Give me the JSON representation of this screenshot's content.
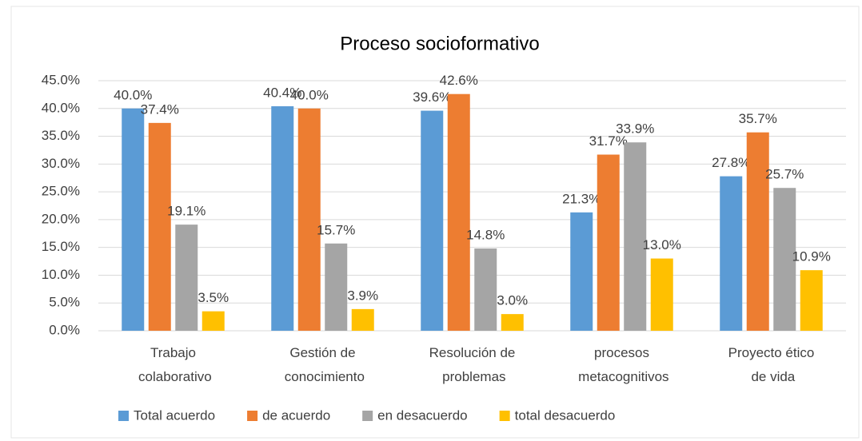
{
  "chart_data": {
    "type": "bar",
    "title": "Proceso socioformativo",
    "categories": [
      "Trabajo\ncolaborativo",
      "Gestión de\nconocimiento",
      "Resolución de\nproblemas",
      "procesos\nmetacognitivos",
      "Proyecto ético\nde vida"
    ],
    "series": [
      {
        "name": "Total acuerdo",
        "color": "#5b9bd5",
        "values": [
          40.0,
          40.4,
          39.6,
          21.3,
          27.8
        ],
        "value_labels": [
          "40.0%",
          "40.4%",
          "39.6%",
          "21.3%",
          "27.8%"
        ]
      },
      {
        "name": "de acuerdo",
        "color": "#ed7d31",
        "values": [
          37.4,
          40.0,
          42.6,
          31.7,
          35.7
        ],
        "value_labels": [
          "37.4%",
          "40.0%",
          "42.6%",
          "31.7%",
          "35.7%"
        ]
      },
      {
        "name": "en desacuerdo",
        "color": "#a5a5a5",
        "values": [
          19.1,
          15.7,
          14.8,
          33.9,
          25.7
        ],
        "value_labels": [
          "19.1%",
          "15.7%",
          "14.8%",
          "33.9%",
          "25.7%"
        ]
      },
      {
        "name": "total desacuerdo",
        "color": "#ffc000",
        "values": [
          3.5,
          3.9,
          3.0,
          13.0,
          10.9
        ],
        "value_labels": [
          "3.5%",
          "3.9%",
          "3.0%",
          "13.0%",
          "10.9%"
        ]
      }
    ],
    "ylim": [
      0,
      45
    ],
    "yticks": [
      {
        "value": 0,
        "label": "0.0%"
      },
      {
        "value": 5,
        "label": "5.0%"
      },
      {
        "value": 10,
        "label": "10.0%"
      },
      {
        "value": 15,
        "label": "15.0%"
      },
      {
        "value": 20,
        "label": "20.0%"
      },
      {
        "value": 25,
        "label": "25.0%"
      },
      {
        "value": 30,
        "label": "30.0%"
      },
      {
        "value": 35,
        "label": "35.0%"
      },
      {
        "value": 40,
        "label": "40.0%"
      },
      {
        "value": 45,
        "label": "45.0%"
      }
    ],
    "grid": true,
    "legend": "bottom"
  }
}
